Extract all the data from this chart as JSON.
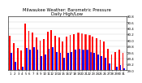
{
  "title": "Milwaukee Weather: Barometric Pressure\nDaily High/Low",
  "background_color": "#ffffff",
  "ylim": [
    29.0,
    30.8
  ],
  "yticks": [
    29.0,
    29.2,
    29.4,
    29.6,
    29.8,
    30.0,
    30.2,
    30.4,
    30.6,
    30.8
  ],
  "ytick_labels": [
    "29.0",
    "29.2",
    "29.4",
    "29.6",
    "29.8",
    "30.0",
    "30.2",
    "30.4",
    "30.6",
    "30.8"
  ],
  "high_vals": [
    30.15,
    29.9,
    29.75,
    29.65,
    30.55,
    30.3,
    30.25,
    30.1,
    30.0,
    30.05,
    30.28,
    30.35,
    30.15,
    30.1,
    29.95,
    30.12,
    30.18,
    30.2,
    30.25,
    30.22,
    30.2,
    30.18,
    30.12,
    30.08,
    30.02,
    29.97,
    29.72,
    29.52,
    29.62,
    29.68,
    29.58
  ],
  "low_vals": [
    29.58,
    29.28,
    29.05,
    29.12,
    29.75,
    29.68,
    29.78,
    29.68,
    29.48,
    29.52,
    29.72,
    29.78,
    29.62,
    29.58,
    29.42,
    29.58,
    29.62,
    29.68,
    29.72,
    29.7,
    29.68,
    29.62,
    29.58,
    29.52,
    29.48,
    29.42,
    29.22,
    29.02,
    29.12,
    29.18,
    29.08
  ],
  "high_color": "#ff0000",
  "low_color": "#0000ff",
  "title_fontsize": 3.8,
  "tick_fontsize": 2.8,
  "bar_width": 0.38,
  "grid_color": "#cccccc",
  "dashed_bars": [
    18,
    19,
    20,
    21
  ]
}
